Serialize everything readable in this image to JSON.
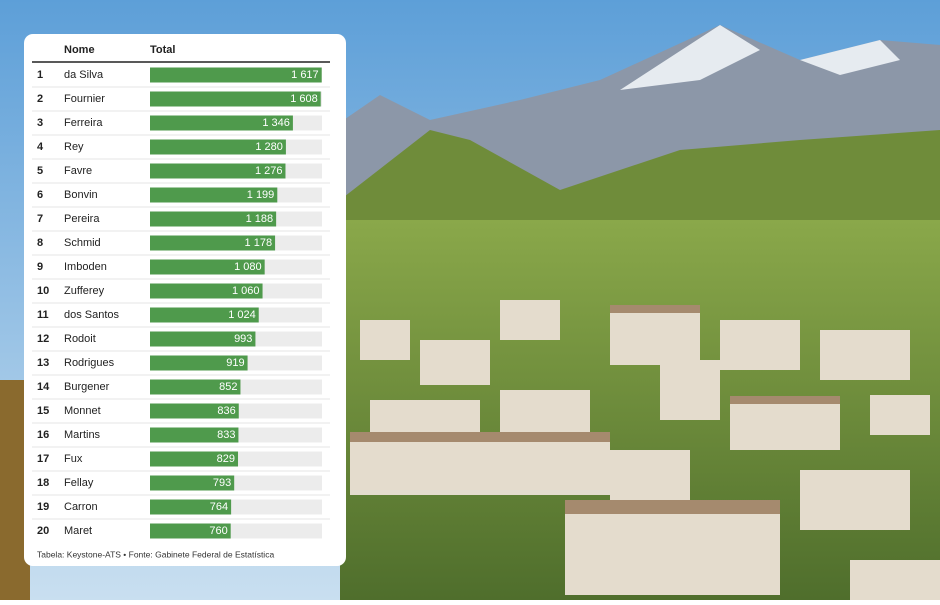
{
  "chart_data": {
    "type": "bar",
    "column_headers": [
      "Nome",
      "Total"
    ],
    "ranks": [
      1,
      2,
      3,
      4,
      5,
      6,
      7,
      8,
      9,
      10,
      11,
      12,
      13,
      14,
      15,
      16,
      17,
      18,
      19,
      20
    ],
    "categories": [
      "da Silva",
      "Fournier",
      "Ferreira",
      "Rey",
      "Favre",
      "Bonvin",
      "Pereira",
      "Schmid",
      "Imboden",
      "Zufferey",
      "dos Santos",
      "Rodoit",
      "Rodrigues",
      "Burgener",
      "Monnet",
      "Martins",
      "Fux",
      "Fellay",
      "Carron",
      "Maret"
    ],
    "values": [
      1617,
      1608,
      1346,
      1280,
      1276,
      1199,
      1188,
      1178,
      1080,
      1060,
      1024,
      993,
      919,
      852,
      836,
      833,
      829,
      793,
      764,
      760
    ],
    "value_labels": [
      "1 617",
      "1 608",
      "1 346",
      "1 280",
      "1 276",
      "1 199",
      "1 188",
      "1 178",
      "1 080",
      "1 060",
      "1 024",
      "993",
      "919",
      "852",
      "836",
      "833",
      "829",
      "793",
      "764",
      "760"
    ],
    "xlim": [
      0,
      1620
    ],
    "color": "#4f9a4c",
    "source": "Tabela: Keystone-ATS • Fonte: Gabinete Federal de Estatística"
  }
}
